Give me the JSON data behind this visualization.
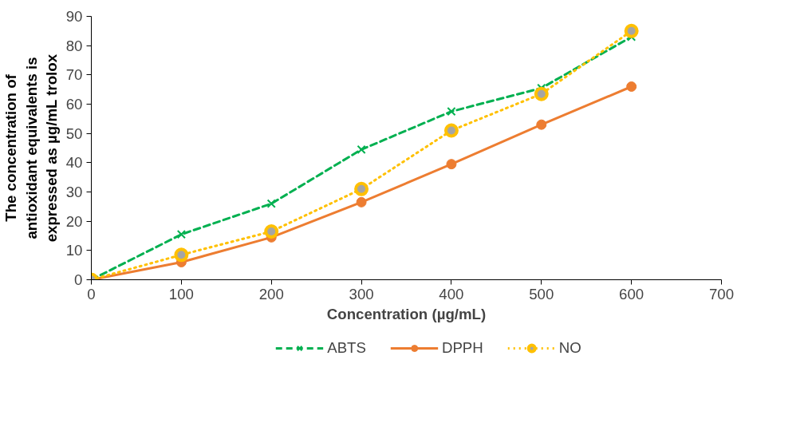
{
  "chart_data": {
    "type": "line",
    "xlabel": "Concentration (µg/mL)",
    "ylabel": "The concentration of antioxidant equivalents is expressed as µg/mL trolox",
    "x": [
      0,
      100,
      200,
      300,
      400,
      500,
      600
    ],
    "series": [
      {
        "name": "ABTS",
        "color": "#00b050",
        "values": [
          0,
          15.5,
          26,
          44.5,
          57.5,
          65.5,
          83
        ],
        "marker": "cross",
        "line_style": "dashed"
      },
      {
        "name": "DPPH",
        "color": "#ed7d31",
        "values": [
          0,
          6,
          14.5,
          26.5,
          39.5,
          53,
          66
        ],
        "marker": "circle",
        "line_style": "solid"
      },
      {
        "name": "NO",
        "color": "#ffc000",
        "values": [
          0,
          8.5,
          16.5,
          31,
          51,
          63.5,
          85
        ],
        "marker": "circle",
        "line_style": "dotted"
      }
    ],
    "xlim": [
      0,
      700
    ],
    "xticks": [
      0,
      100,
      200,
      300,
      400,
      500,
      600,
      700
    ],
    "ylim": [
      0,
      90
    ],
    "yticks": [
      0,
      10,
      20,
      30,
      40,
      50,
      60,
      70,
      80,
      90
    ],
    "grid": false,
    "legend": "bottom"
  }
}
